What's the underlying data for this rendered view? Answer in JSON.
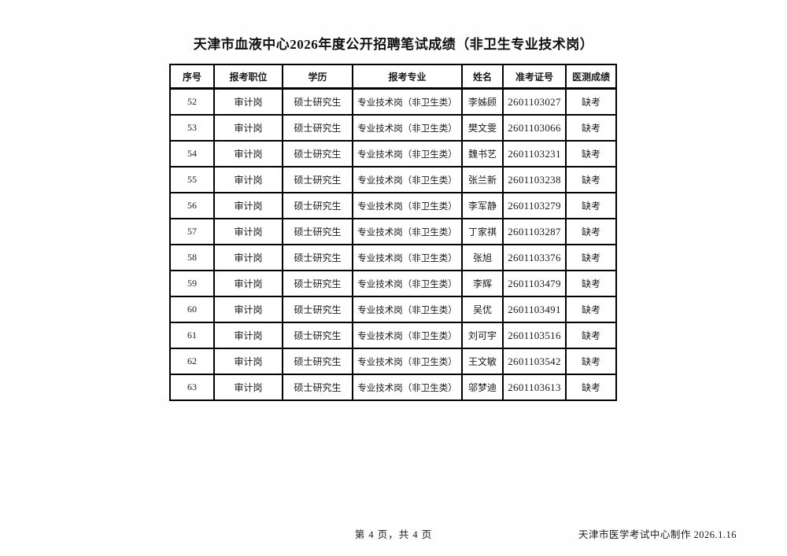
{
  "page": {
    "title": "天津市血液中心2026年度公开招聘笔试成绩（非卫生专业技术岗）",
    "footer": {
      "page_indicator": "第 4 页，共 4 页",
      "credit": "天津市医学考试中心制作 2026.1.16"
    }
  },
  "table": {
    "headers": [
      "序号",
      "报考职位",
      "学历",
      "报考专业",
      "姓名",
      "准考证号",
      "医测成绩"
    ],
    "rows": [
      [
        "52",
        "审计岗",
        "硕士研究生",
        "专业技术岗（非卫生类）",
        "李姊顾",
        "2601103027",
        "缺考"
      ],
      [
        "53",
        "审计岗",
        "硕士研究生",
        "专业技术岗（非卫生类）",
        "樊文雯",
        "2601103066",
        "缺考"
      ],
      [
        "54",
        "审计岗",
        "硕士研究生",
        "专业技术岗（非卫生类）",
        "魏书艺",
        "2601103231",
        "缺考"
      ],
      [
        "55",
        "审计岗",
        "硕士研究生",
        "专业技术岗（非卫生类）",
        "张兰新",
        "2601103238",
        "缺考"
      ],
      [
        "56",
        "审计岗",
        "硕士研究生",
        "专业技术岗（非卫生类）",
        "李军静",
        "2601103279",
        "缺考"
      ],
      [
        "57",
        "审计岗",
        "硕士研究生",
        "专业技术岗（非卫生类）",
        "丁家祺",
        "2601103287",
        "缺考"
      ],
      [
        "58",
        "审计岗",
        "硕士研究生",
        "专业技术岗（非卫生类）",
        "张旭",
        "2601103376",
        "缺考"
      ],
      [
        "59",
        "审计岗",
        "硕士研究生",
        "专业技术岗（非卫生类）",
        "李辉",
        "2601103479",
        "缺考"
      ],
      [
        "60",
        "审计岗",
        "硕士研究生",
        "专业技术岗（非卫生类）",
        "吴优",
        "2601103491",
        "缺考"
      ],
      [
        "61",
        "审计岗",
        "硕士研究生",
        "专业技术岗（非卫生类）",
        "刘可宇",
        "2601103516",
        "缺考"
      ],
      [
        "62",
        "审计岗",
        "硕士研究生",
        "专业技术岗（非卫生类）",
        "王文敏",
        "2601103542",
        "缺考"
      ],
      [
        "63",
        "审计岗",
        "硕士研究生",
        "专业技术岗（非卫生类）",
        "邬梦迪",
        "2601103613",
        "缺考"
      ]
    ]
  }
}
